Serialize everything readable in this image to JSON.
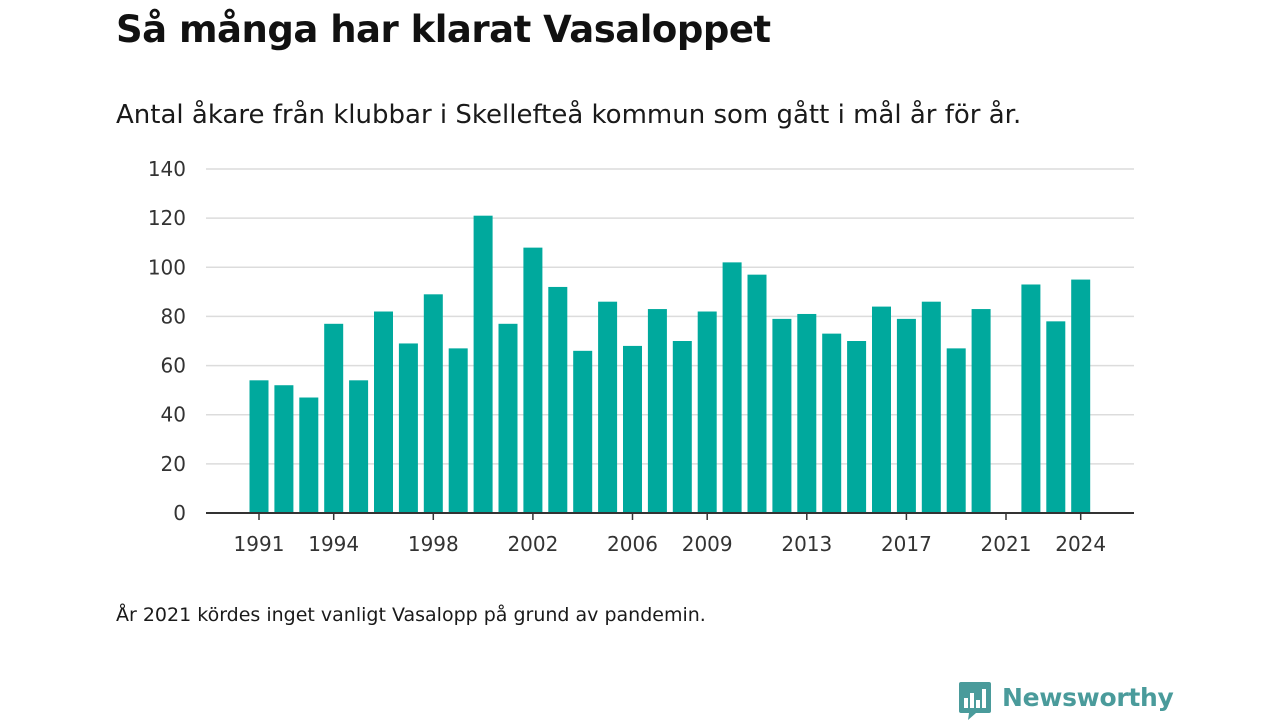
{
  "chart_data": {
    "type": "bar",
    "title": "Så många har klarat Vasaloppet",
    "subtitle": "Antal åkare från klubbar i Skellefteå kommun som gått i mål år för år.",
    "note": "År 2021 kördes inget vanligt Vasalopp på grund av pandemin.",
    "categories": [
      "1991",
      "1992",
      "1993",
      "1994",
      "1995",
      "1996",
      "1997",
      "1998",
      "1999",
      "2000",
      "2001",
      "2002",
      "2003",
      "2004",
      "2005",
      "2006",
      "2007",
      "2008",
      "2009",
      "2010",
      "2011",
      "2012",
      "2013",
      "2014",
      "2015",
      "2016",
      "2017",
      "2018",
      "2019",
      "2020",
      "2021",
      "2022",
      "2023",
      "2024"
    ],
    "values": [
      54,
      52,
      47,
      77,
      54,
      82,
      69,
      89,
      67,
      121,
      77,
      108,
      92,
      66,
      86,
      68,
      83,
      70,
      82,
      102,
      97,
      79,
      81,
      73,
      70,
      84,
      79,
      86,
      67,
      83,
      0,
      93,
      78,
      95
    ],
    "x_tick_labels": [
      "1991",
      "1994",
      "1998",
      "2002",
      "2006",
      "2009",
      "2013",
      "2017",
      "2021",
      "2024"
    ],
    "y_ticks": [
      0,
      20,
      40,
      60,
      80,
      100,
      120,
      140
    ],
    "ylim": [
      0,
      140
    ],
    "xlabel": "",
    "ylabel": "",
    "grid": true,
    "bar_color": "#00a99d"
  },
  "brand": {
    "name": "Newsworthy",
    "icon": "newsworthy-logo-icon",
    "color": "#4a9b9b"
  }
}
